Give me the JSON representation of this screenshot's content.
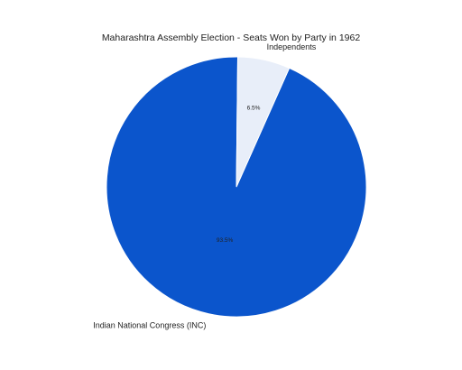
{
  "chart_data": {
    "type": "pie",
    "title": "Maharashtra Assembly Election - Seats Won by Party in 1962",
    "slices": [
      {
        "label": "Indian National Congress (INC)",
        "value": 93.5,
        "pct_label": "93.5%",
        "color": "#0b55cc"
      },
      {
        "label": "Independents",
        "value": 6.5,
        "pct_label": "6.5%",
        "color": "#e8eef9"
      }
    ]
  }
}
